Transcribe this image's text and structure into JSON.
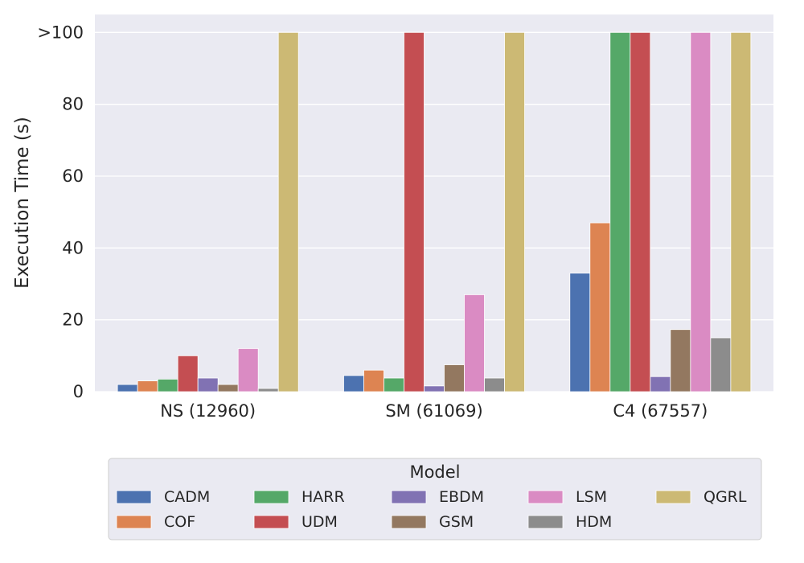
{
  "chart_data": {
    "type": "bar",
    "ylabel": "Execution Time (s)",
    "xlabel": "",
    "ylim": [
      0,
      105
    ],
    "yticks": [
      {
        "value": 0,
        "label": "0"
      },
      {
        "value": 20,
        "label": "20"
      },
      {
        "value": 40,
        "label": "40"
      },
      {
        "value": 60,
        "label": "60"
      },
      {
        "value": 80,
        "label": "80"
      },
      {
        "value": 100,
        "label": ">100"
      }
    ],
    "grid": true,
    "categories": [
      "NS (12960)",
      "SM (61069)",
      "C4 (67557)"
    ],
    "legend_title": "Model",
    "legend_position": "bottom-center",
    "series": [
      {
        "name": "CADM",
        "color": "#4c72b0",
        "values": [
          2.0,
          4.5,
          33
        ]
      },
      {
        "name": "COF",
        "color": "#dd8452",
        "values": [
          3.0,
          6.0,
          47
        ]
      },
      {
        "name": "HARR",
        "color": "#55a868",
        "values": [
          3.5,
          3.8,
          100
        ]
      },
      {
        "name": "UDM",
        "color": "#c44e52",
        "values": [
          10,
          100,
          100
        ]
      },
      {
        "name": "EBDM",
        "color": "#8172b3",
        "values": [
          3.8,
          1.6,
          4.2
        ]
      },
      {
        "name": "GSM",
        "color": "#937860",
        "values": [
          2.0,
          7.5,
          17.3
        ]
      },
      {
        "name": "LSM",
        "color": "#da8bc3",
        "values": [
          12,
          27,
          100
        ]
      },
      {
        "name": "HDM",
        "color": "#8c8c8c",
        "values": [
          0.9,
          3.8,
          15
        ]
      },
      {
        "name": "QGRL",
        "color": "#ccb974",
        "values": [
          100,
          100,
          100
        ]
      }
    ]
  },
  "colors": {
    "plot_background": "#eaeaf2",
    "grid": "#ffffff",
    "text": "#262626"
  }
}
